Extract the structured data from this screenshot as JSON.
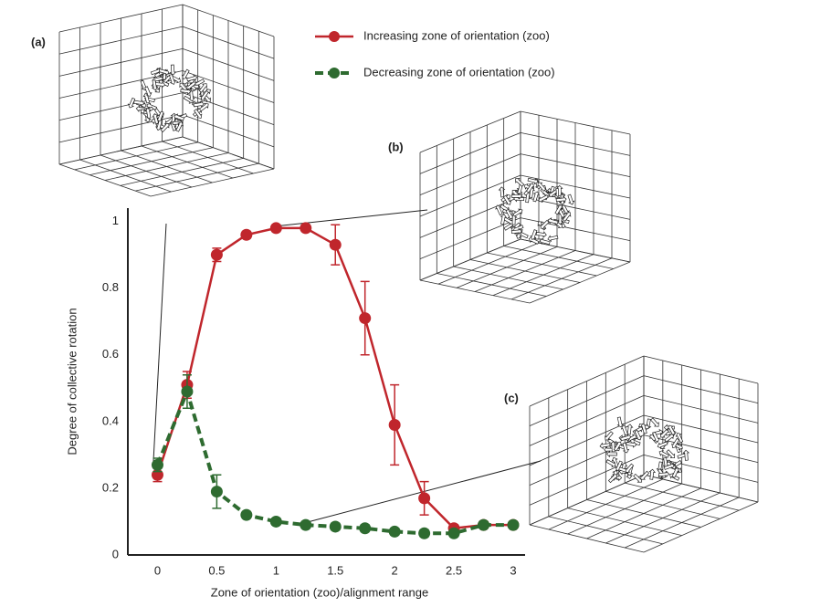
{
  "chart_data": {
    "type": "line",
    "xlabel": "Zone of orientation (zoo)/alignment range",
    "ylabel": "Degree of collective rotation",
    "x": [
      0,
      0.25,
      0.5,
      0.75,
      1,
      1.25,
      1.5,
      1.75,
      2,
      2.25,
      2.5,
      2.75,
      3
    ],
    "series": [
      {
        "name": "Increasing zone of orientation (zoo)",
        "color": "#c0262c",
        "dashed": false,
        "values": [
          0.24,
          0.51,
          0.9,
          0.96,
          0.98,
          0.98,
          0.93,
          0.71,
          0.39,
          0.17,
          0.08,
          0.09,
          0.09
        ],
        "errors": [
          0.02,
          0.04,
          0.02,
          0.01,
          0.01,
          0.01,
          0.06,
          0.11,
          0.12,
          0.05,
          0.01,
          0.01,
          0.01
        ]
      },
      {
        "name": "Decreasing zone of orientation (zoo)",
        "color": "#2e6b30",
        "dashed": true,
        "values": [
          0.27,
          0.49,
          0.19,
          0.12,
          0.1,
          0.09,
          0.085,
          0.08,
          0.07,
          0.065,
          0.065,
          0.09,
          0.09
        ],
        "errors": [
          0.02,
          0.05,
          0.05,
          0.01,
          0.01,
          0.01,
          0.01,
          0.01,
          0.01,
          0.01,
          0.01,
          0.01,
          0.01
        ]
      }
    ],
    "xlim": [
      -0.25,
      3.1
    ],
    "ylim": [
      0,
      1.04
    ],
    "xticks": [
      0,
      0.5,
      1,
      1.5,
      2,
      2.5,
      3
    ],
    "yticks": [
      0,
      0.2,
      0.4,
      0.6,
      0.8,
      1
    ],
    "grid": false,
    "insets": [
      "(a)",
      "(b)",
      "(c)"
    ]
  }
}
